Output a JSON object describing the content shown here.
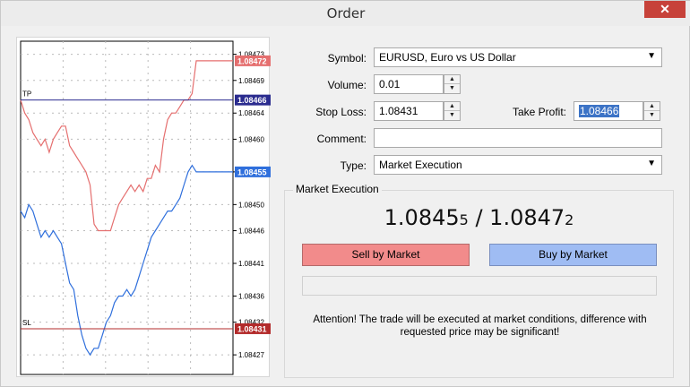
{
  "window": {
    "title": "Order",
    "close_glyph": "✕"
  },
  "chart": {
    "price_min": 1.08424,
    "price_max": 1.08475,
    "axis_ticks": [
      "1.08473",
      "1.08469",
      "1.08464",
      "1.08460",
      "1.08455",
      "1.08450",
      "1.08446",
      "1.08441",
      "1.08436",
      "1.08432",
      "1.08427"
    ],
    "levels": [
      {
        "name": "ask",
        "label": "1.08472",
        "price": 1.08472,
        "color": "#e56f6f"
      },
      {
        "name": "tp",
        "label": "1.08466",
        "price": 1.08466,
        "color": "#2b2c8f",
        "line_label": "TP"
      },
      {
        "name": "bid",
        "label": "1.08455",
        "price": 1.08455,
        "color": "#2f6fdc"
      },
      {
        "name": "sl",
        "label": "1.08431",
        "price": 1.08431,
        "color": "#b32b2b",
        "line_label": "SL"
      }
    ],
    "ask_series": [
      1.08466,
      1.08464,
      1.08463,
      1.08461,
      1.0846,
      1.08459,
      1.0846,
      1.08458,
      1.0846,
      1.08461,
      1.08462,
      1.08462,
      1.08459,
      1.08458,
      1.08457,
      1.08456,
      1.08455,
      1.08453,
      1.08447,
      1.08446,
      1.08446,
      1.08446,
      1.08446,
      1.08448,
      1.0845,
      1.08451,
      1.08452,
      1.08453,
      1.08452,
      1.08453,
      1.08452,
      1.08454,
      1.08454,
      1.08456,
      1.08455,
      1.0846,
      1.08463,
      1.08464,
      1.08464,
      1.08465,
      1.08466,
      1.08466,
      1.08467,
      1.08472,
      1.08472,
      1.08472,
      1.08472,
      1.08472,
      1.08472,
      1.08472,
      1.08472,
      1.08472,
      1.08472
    ],
    "bid_series": [
      1.08449,
      1.08448,
      1.0845,
      1.08449,
      1.08447,
      1.08445,
      1.08446,
      1.08445,
      1.08446,
      1.08445,
      1.08444,
      1.08441,
      1.08438,
      1.08437,
      1.08433,
      1.0843,
      1.08428,
      1.08427,
      1.08428,
      1.08428,
      1.0843,
      1.08432,
      1.08433,
      1.08435,
      1.08436,
      1.08436,
      1.08437,
      1.08436,
      1.08437,
      1.08439,
      1.08441,
      1.08443,
      1.08445,
      1.08446,
      1.08447,
      1.08448,
      1.08449,
      1.08449,
      1.0845,
      1.08451,
      1.08453,
      1.08455,
      1.08456,
      1.08455,
      1.08455,
      1.08455,
      1.08455,
      1.08455,
      1.08455,
      1.08455,
      1.08455,
      1.08455,
      1.08455
    ]
  },
  "form": {
    "symbol_label": "Symbol:",
    "symbol_value": "EURUSD, Euro vs US Dollar",
    "volume_label": "Volume:",
    "volume_value": "0.01",
    "stoploss_label": "Stop Loss:",
    "stoploss_value": "1.08431",
    "takeprofit_label": "Take Profit:",
    "takeprofit_value": "1.08466",
    "comment_label": "Comment:",
    "comment_value": "",
    "type_label": "Type:",
    "type_value": "Market Execution",
    "dropdown_glyph": "▼",
    "spin_up": "▲",
    "spin_down": "▼"
  },
  "execution": {
    "group_title": "Market Execution",
    "bid_main": "1.0845",
    "bid_pip": "5",
    "separator": " / ",
    "ask_main": "1.0847",
    "ask_pip": "2",
    "sell_label": "Sell by Market",
    "buy_label": "Buy by Market",
    "attention": "Attention! The trade will be executed at market conditions, difference with requested price may be significant!"
  },
  "colors": {
    "sell": "#f28b8b",
    "buy": "#9fbcf3",
    "ask_line": "#e56f6f",
    "bid_line": "#2f6fdc"
  }
}
